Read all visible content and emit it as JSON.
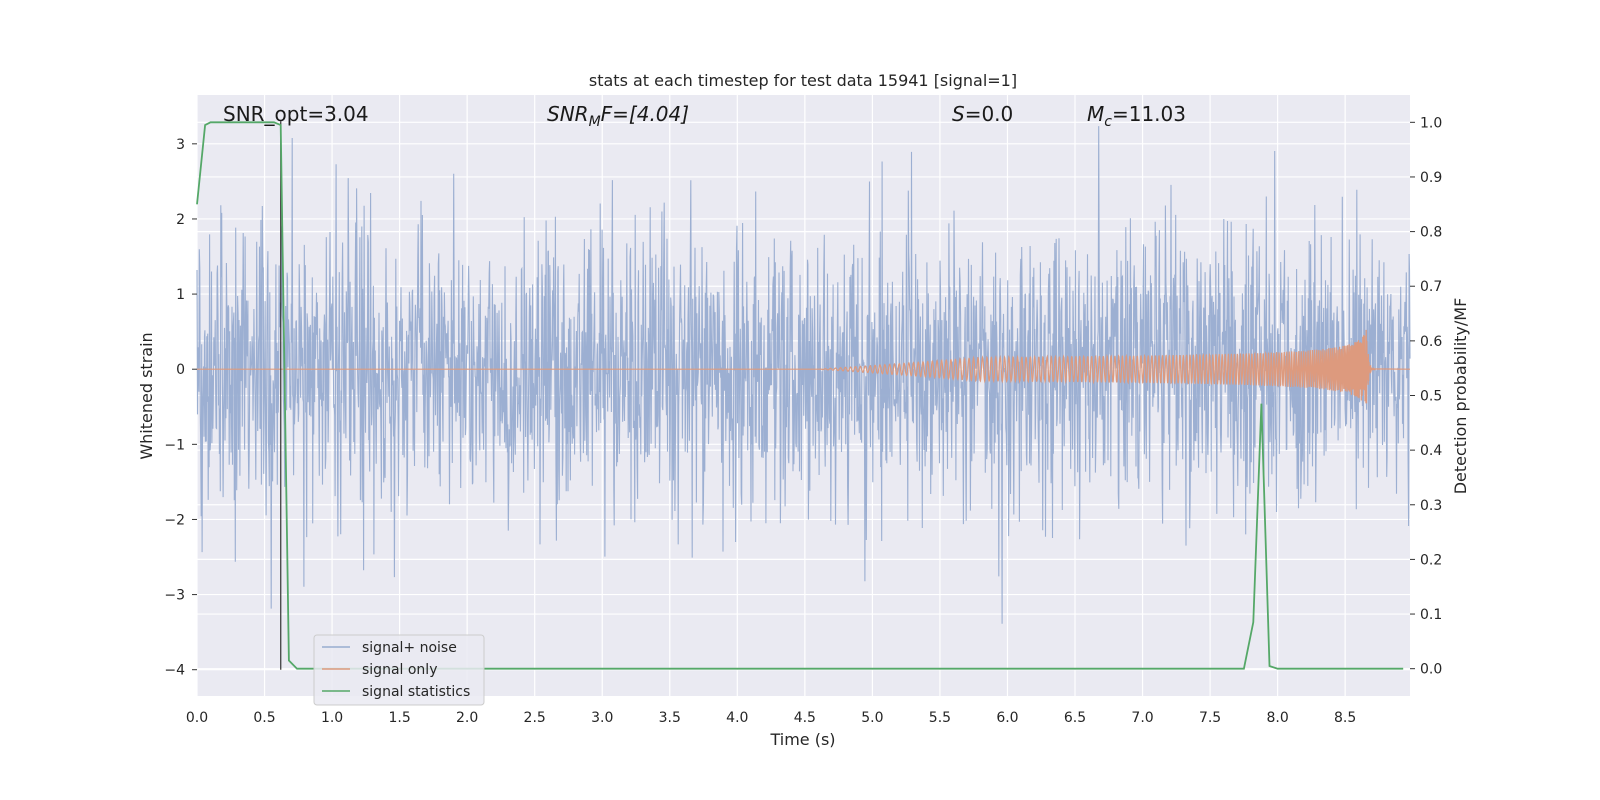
{
  "chart_data": {
    "type": "line",
    "title": "stats at each timestep for test data 15941 [signal=1]",
    "xlabel": "Time (s)",
    "ylabel": "Whitened strain",
    "y2label": "Detection probability/MF",
    "xlim": [
      0.0,
      8.98
    ],
    "ylim": [
      -4.35,
      3.65
    ],
    "y2lim": [
      -0.05,
      1.05
    ],
    "x_ticks": [
      0.0,
      0.5,
      1.0,
      1.5,
      2.0,
      2.5,
      3.0,
      3.5,
      4.0,
      4.5,
      5.0,
      5.5,
      6.0,
      6.5,
      7.0,
      7.5,
      8.0,
      8.5
    ],
    "x_tick_labels": [
      "0.0",
      "0.5",
      "1.0",
      "1.5",
      "2.0",
      "2.5",
      "3.0",
      "3.5",
      "4.0",
      "4.5",
      "5.0",
      "5.5",
      "6.0",
      "6.5",
      "7.0",
      "7.5",
      "8.0",
      "8.5"
    ],
    "y_ticks": [
      3,
      2,
      1,
      0,
      -1,
      -2,
      -3,
      -4
    ],
    "y_tick_labels": [
      "3",
      "2",
      "1",
      "0",
      "−1",
      "−2",
      "−3",
      "−4"
    ],
    "y2_ticks": [
      1.0,
      0.9,
      0.8,
      0.7,
      0.6,
      0.5,
      0.4,
      0.3,
      0.2,
      0.1,
      0.0
    ],
    "y2_tick_labels": [
      "1.0",
      "0.9",
      "0.8",
      "0.7",
      "0.6",
      "0.5",
      "0.4",
      "0.3",
      "0.2",
      "0.1",
      "0.0"
    ],
    "grid": true,
    "legend_position": "lower-left",
    "annotations": {
      "snr_opt": "SNR_opt=3.04",
      "snr_mf_main": "SNR",
      "snr_mf_sub": "M",
      "snr_mf_rest": "F=[4.04]",
      "s_italic": "S",
      "s_rest": "=0.0",
      "mc_main": "M",
      "mc_sub": "c",
      "mc_rest": "=11.03"
    },
    "marker_line_x": 0.62,
    "series": [
      {
        "name": "signal+ noise",
        "color": "#98acd0",
        "axis": "left",
        "style": "noise",
        "seed": 15941,
        "sigma": 1.0,
        "max_abs": 3.55
      },
      {
        "name": "signal only",
        "color": "#dd9a7e",
        "axis": "left",
        "style": "chirp",
        "t_start": 4.6,
        "t_merge": 8.66,
        "peak_amp": 0.55,
        "ringdown_end": 8.72
      },
      {
        "name": "signal statistics",
        "color": "#55a868",
        "axis": "right",
        "style": "line",
        "x": [
          0.0,
          0.06,
          0.1,
          0.15,
          0.2,
          0.3,
          0.4,
          0.5,
          0.57,
          0.62,
          0.68,
          0.74,
          1.0,
          2.0,
          3.0,
          4.0,
          5.0,
          6.0,
          7.0,
          7.5,
          7.75,
          7.82,
          7.88,
          7.94,
          8.0,
          8.5,
          8.93
        ],
        "y": [
          0.85,
          0.995,
          1.0,
          1.0,
          1.0,
          1.0,
          1.0,
          1.0,
          1.0,
          0.995,
          0.015,
          0.0,
          0.0,
          0.0,
          0.0,
          0.0,
          0.0,
          0.0,
          0.0,
          0.0,
          0.0,
          0.085,
          0.485,
          0.005,
          0.0,
          0.0,
          0.0
        ]
      }
    ]
  }
}
